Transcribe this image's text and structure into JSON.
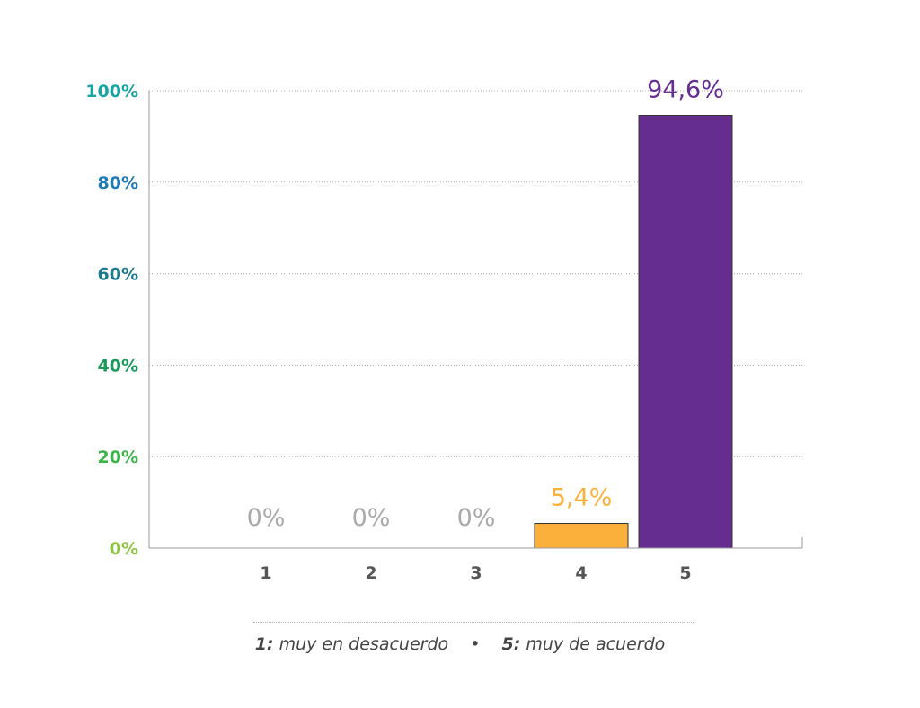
{
  "chart_data": {
    "type": "bar",
    "categories": [
      "1",
      "2",
      "3",
      "4",
      "5"
    ],
    "values": [
      0,
      0,
      0,
      5.4,
      94.6
    ],
    "value_labels": [
      "0%",
      "0%",
      "0%",
      "5,4%",
      "94,6%"
    ],
    "ylim": [
      0,
      100
    ],
    "yticks": [
      0,
      20,
      40,
      60,
      80,
      100
    ],
    "ytick_labels": [
      "0%",
      "20%",
      "40%",
      "60%",
      "80%",
      "100%"
    ],
    "ytick_colors": [
      "#8cc63f",
      "#39b54a",
      "#1a9a5a",
      "#1b7a8c",
      "#1f7ab5",
      "#1aa3a3"
    ],
    "bar_colors": [
      "#cccccc",
      "#cccccc",
      "#cccccc",
      "#fbb03b",
      "#662d91"
    ],
    "zero_label_color": "#aaaaaa",
    "grid": true
  },
  "legend": {
    "low_key": "1:",
    "low_text": "muy en desacuerdo",
    "separator": "•",
    "high_key": "5:",
    "high_text": "muy de acuerdo"
  }
}
